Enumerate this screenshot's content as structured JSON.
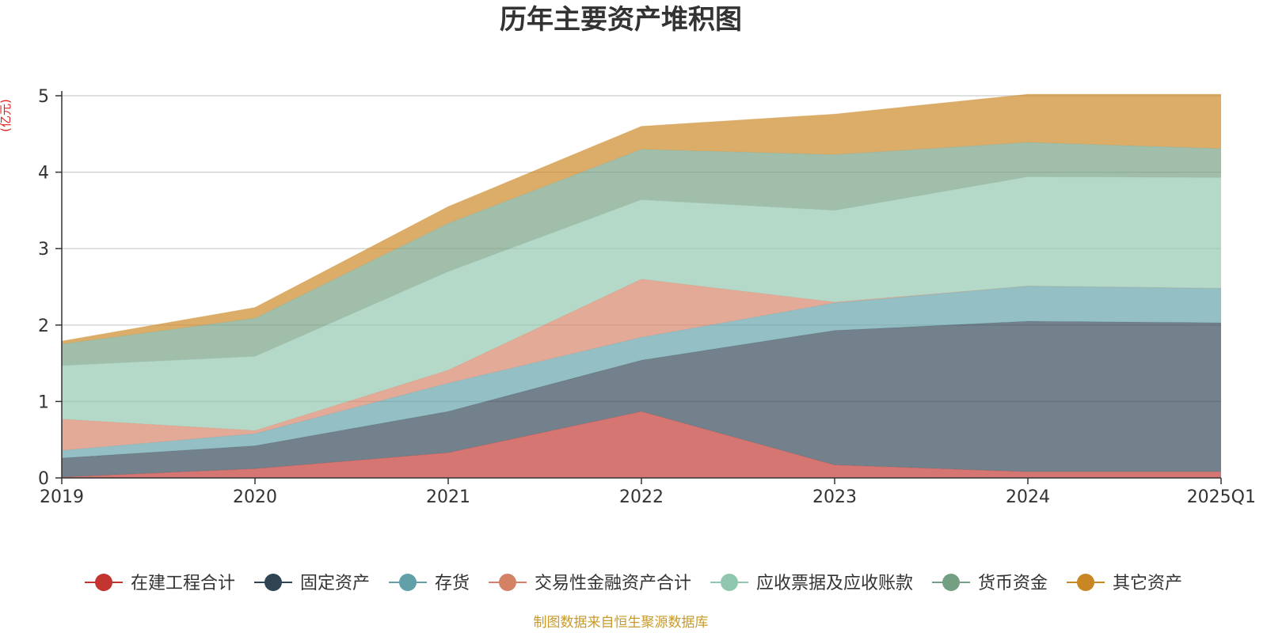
{
  "chart_data": {
    "type": "area",
    "stacked": true,
    "title": "历年主要资产堆积图",
    "unit_label": "(亿元)",
    "source": "制图数据来自恒生聚源数据库",
    "categories": [
      "2019",
      "2020",
      "2021",
      "2022",
      "2023",
      "2024",
      "2025Q1"
    ],
    "ylim": [
      0,
      5
    ],
    "yticks": [
      0,
      1,
      2,
      3,
      4,
      5
    ],
    "grid": true,
    "legend_position": "bottom",
    "series": [
      {
        "name": "在建工程合计",
        "color": "#c23531",
        "values": [
          0.01,
          0.12,
          0.33,
          0.87,
          0.17,
          0.08,
          0.08
        ]
      },
      {
        "name": "固定资产",
        "color": "#2f4554",
        "values": [
          0.25,
          0.3,
          0.54,
          0.67,
          1.76,
          1.97,
          1.95
        ]
      },
      {
        "name": "存货",
        "color": "#61a0a8",
        "values": [
          0.1,
          0.16,
          0.37,
          0.3,
          0.36,
          0.46,
          0.45
        ]
      },
      {
        "name": "交易性金融资产合计",
        "color": "#d48265",
        "values": [
          0.41,
          0.04,
          0.17,
          0.76,
          0.01,
          0.0,
          0.0
        ]
      },
      {
        "name": "应收票据及应收账款",
        "color": "#91c7ae",
        "values": [
          0.7,
          0.97,
          1.29,
          1.04,
          1.2,
          1.43,
          1.45
        ]
      },
      {
        "name": "货币资金",
        "color": "#749f83",
        "values": [
          0.28,
          0.5,
          0.63,
          0.66,
          0.73,
          0.45,
          0.38
        ]
      },
      {
        "name": "其它资产",
        "color": "#ca8622",
        "values": [
          0.04,
          0.14,
          0.22,
          0.3,
          0.53,
          0.63,
          0.71
        ]
      }
    ]
  }
}
